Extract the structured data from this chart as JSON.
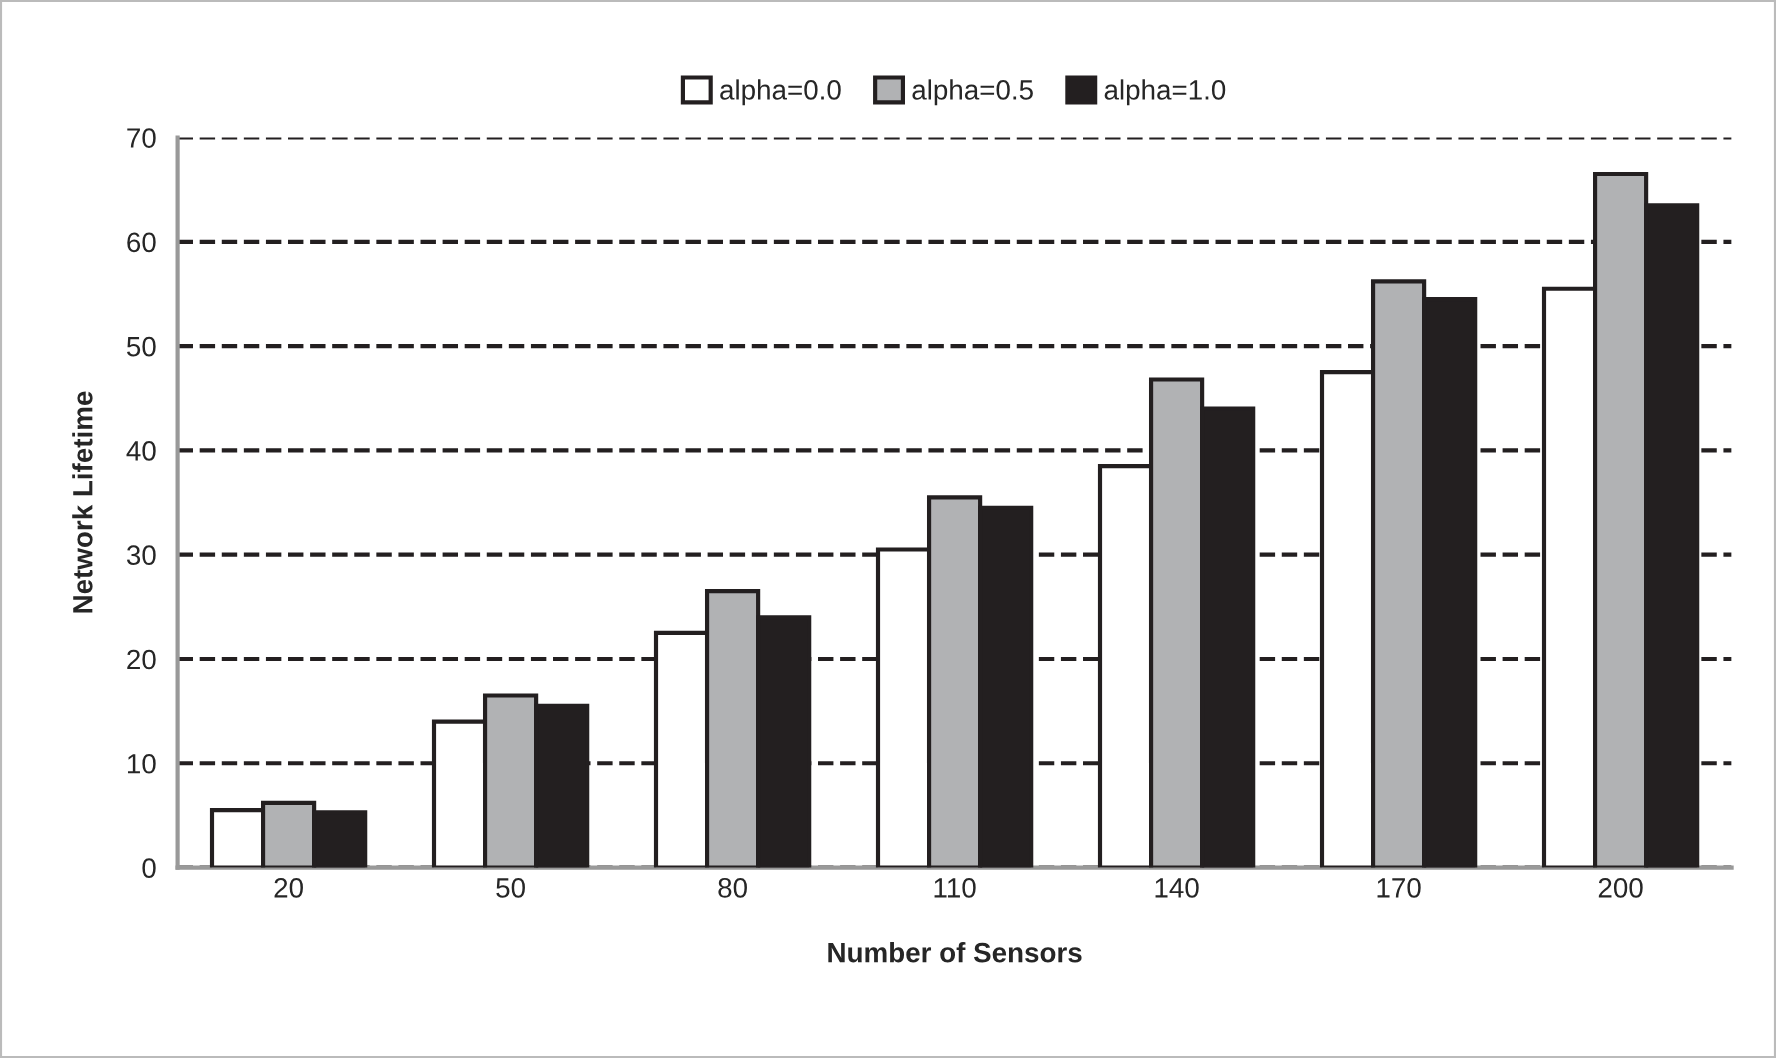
{
  "chart_data": {
    "type": "bar",
    "xlabel": "Number of Sensors",
    "ylabel": "Network Lifetime",
    "categories": [
      "20",
      "50",
      "80",
      "110",
      "140",
      "170",
      "200"
    ],
    "series": [
      {
        "name": "alpha=0.0",
        "color": "#ffffff",
        "values": [
          5.5,
          14,
          22.5,
          30.5,
          38.5,
          47.5,
          55.5
        ]
      },
      {
        "name": "alpha=0.5",
        "color": "#b1b2b4",
        "values": [
          6.2,
          16.5,
          26.5,
          35.5,
          46.8,
          56.2,
          66.5
        ]
      },
      {
        "name": "alpha=1.0",
        "color": "#231f20",
        "values": [
          5.3,
          15.5,
          24,
          34.5,
          44,
          54.5,
          63.5
        ]
      }
    ],
    "ylim": [
      0,
      70
    ],
    "yticks": [
      0,
      10,
      20,
      30,
      40,
      50,
      60,
      70
    ],
    "grid": "y",
    "legend": "top"
  }
}
